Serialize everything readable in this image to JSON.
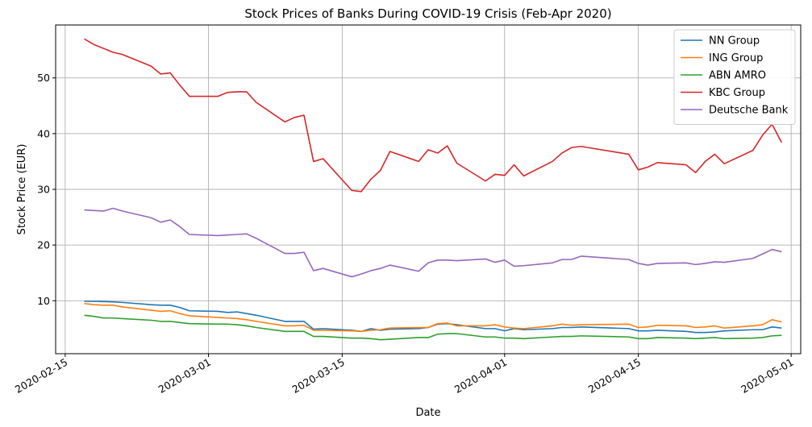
{
  "chart_data": {
    "type": "line",
    "title": "Stock Prices of Banks During COVID-19 Crisis (Feb-Apr 2020)",
    "xlabel": "Date",
    "ylabel": "Stock Price (EUR)",
    "xlim": [
      "2020-02-14",
      "2020-05-02"
    ],
    "ylim": [
      0.5,
      59.5
    ],
    "xticks": [
      "2020-02-15",
      "2020-03-01",
      "2020-03-15",
      "2020-04-01",
      "2020-04-15",
      "2020-05-01"
    ],
    "yticks": [
      10,
      20,
      30,
      40,
      50
    ],
    "grid": true,
    "legend_position": "top-right",
    "x": [
      "2020-02-17",
      "2020-02-18",
      "2020-02-19",
      "2020-02-20",
      "2020-02-21",
      "2020-02-24",
      "2020-02-25",
      "2020-02-26",
      "2020-02-27",
      "2020-02-28",
      "2020-03-02",
      "2020-03-03",
      "2020-03-04",
      "2020-03-05",
      "2020-03-06",
      "2020-03-09",
      "2020-03-10",
      "2020-03-11",
      "2020-03-12",
      "2020-03-13",
      "2020-03-16",
      "2020-03-17",
      "2020-03-18",
      "2020-03-19",
      "2020-03-20",
      "2020-03-23",
      "2020-03-24",
      "2020-03-25",
      "2020-03-26",
      "2020-03-27",
      "2020-03-30",
      "2020-03-31",
      "2020-04-01",
      "2020-04-02",
      "2020-04-03",
      "2020-04-06",
      "2020-04-07",
      "2020-04-08",
      "2020-04-09",
      "2020-04-14",
      "2020-04-15",
      "2020-04-16",
      "2020-04-17",
      "2020-04-20",
      "2020-04-21",
      "2020-04-22",
      "2020-04-23",
      "2020-04-24",
      "2020-04-27",
      "2020-04-28",
      "2020-04-29",
      "2020-04-30"
    ],
    "series": [
      {
        "name": "NN Group",
        "color": "#1f77b4",
        "values": [
          9.9,
          9.9,
          9.85,
          9.8,
          9.7,
          9.3,
          9.2,
          9.2,
          8.8,
          8.2,
          8.1,
          7.9,
          8.0,
          7.7,
          7.4,
          6.3,
          6.3,
          6.3,
          4.9,
          5.0,
          4.7,
          4.5,
          5.0,
          4.7,
          4.9,
          5.0,
          5.2,
          5.8,
          5.9,
          5.7,
          5.0,
          5.0,
          4.6,
          5.0,
          4.8,
          5.0,
          5.2,
          5.2,
          5.3,
          5.0,
          4.6,
          4.6,
          4.7,
          4.5,
          4.3,
          4.3,
          4.4,
          4.6,
          4.8,
          4.8,
          5.3,
          5.1
        ]
      },
      {
        "name": "ING Group",
        "color": "#ff7f0e",
        "values": [
          9.5,
          9.3,
          9.2,
          9.2,
          8.9,
          8.3,
          8.1,
          8.2,
          7.7,
          7.3,
          7.0,
          6.9,
          6.8,
          6.6,
          6.3,
          5.5,
          5.5,
          5.6,
          4.7,
          4.7,
          4.6,
          4.5,
          4.7,
          4.8,
          5.1,
          5.2,
          5.2,
          5.9,
          6.0,
          5.5,
          5.5,
          5.7,
          5.3,
          5.1,
          5.0,
          5.5,
          5.8,
          5.6,
          5.7,
          5.8,
          5.2,
          5.3,
          5.6,
          5.5,
          5.2,
          5.3,
          5.5,
          5.1,
          5.5,
          5.7,
          6.6,
          6.2
        ]
      },
      {
        "name": "ABN AMRO",
        "color": "#2ca02c",
        "values": [
          7.4,
          7.2,
          6.9,
          6.9,
          6.8,
          6.5,
          6.3,
          6.3,
          6.1,
          5.9,
          5.8,
          5.8,
          5.7,
          5.5,
          5.2,
          4.5,
          4.5,
          4.5,
          3.6,
          3.6,
          3.3,
          3.3,
          3.2,
          3.0,
          3.1,
          3.4,
          3.4,
          4.0,
          4.1,
          4.1,
          3.5,
          3.5,
          3.3,
          3.3,
          3.2,
          3.5,
          3.6,
          3.6,
          3.7,
          3.5,
          3.2,
          3.2,
          3.4,
          3.3,
          3.2,
          3.3,
          3.4,
          3.2,
          3.3,
          3.4,
          3.7,
          3.8
        ]
      },
      {
        "name": "KBC Group",
        "color": "#d62728",
        "values": [
          57.0,
          56.0,
          55.3,
          54.6,
          54.2,
          52.1,
          50.7,
          50.9,
          48.7,
          46.7,
          46.7,
          47.4,
          47.5,
          47.5,
          45.6,
          42.1,
          42.9,
          43.3,
          35.0,
          35.5,
          29.8,
          29.6,
          31.8,
          33.4,
          36.8,
          35.0,
          37.1,
          36.5,
          37.8,
          34.7,
          31.5,
          32.7,
          32.5,
          34.4,
          32.4,
          35.0,
          36.5,
          37.5,
          37.7,
          36.3,
          33.5,
          34.0,
          34.8,
          34.4,
          33.0,
          35.0,
          36.3,
          34.6,
          37.0,
          39.7,
          41.7,
          38.4
        ]
      },
      {
        "name": "Deutsche Bank",
        "color": "#9467bd",
        "values": [
          26.3,
          26.2,
          26.1,
          26.6,
          26.1,
          24.9,
          24.1,
          24.5,
          23.3,
          21.9,
          21.7,
          21.8,
          21.9,
          22.0,
          21.2,
          18.5,
          18.5,
          18.7,
          15.4,
          15.8,
          14.3,
          14.8,
          15.4,
          15.8,
          16.4,
          15.3,
          16.8,
          17.3,
          17.3,
          17.2,
          17.5,
          16.9,
          17.3,
          16.2,
          16.3,
          16.8,
          17.4,
          17.4,
          18.0,
          17.4,
          16.7,
          16.4,
          16.7,
          16.8,
          16.5,
          16.7,
          17.0,
          16.9,
          17.6,
          18.4,
          19.2,
          18.8
        ]
      }
    ]
  }
}
